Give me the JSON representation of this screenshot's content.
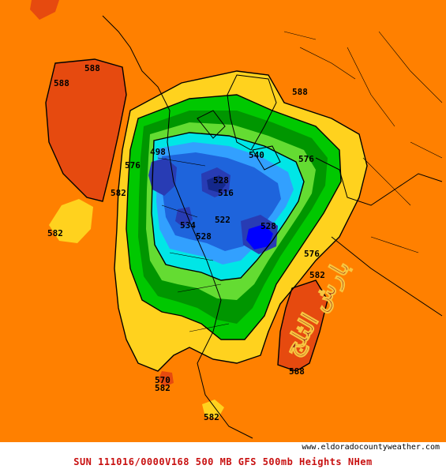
{
  "map": {
    "field": "500mb Heights",
    "palette": {
      "ocean_background": "#ff8000",
      "ridge_high": "#e64a0f",
      "outer_ring": "#ffd21e",
      "ring_green_light": "#00c800",
      "ring_green_dark": "#009600",
      "ring_lime": "#64dc32",
      "ring_cyan": "#00e6e6",
      "ring_sky": "#32a0ff",
      "ring_blue": "#1e64dc",
      "core_navy": "#283cb4",
      "core_dark": "#14288c",
      "core_deep": "#0000ff",
      "caption_red": "#c81010"
    },
    "contour_labels": [
      "588",
      "588",
      "588",
      "582",
      "582",
      "582",
      "582",
      "576",
      "576",
      "576",
      "570",
      "540",
      "534",
      "528",
      "528",
      "528",
      "522",
      "516",
      "498",
      "582",
      "588"
    ],
    "watermark": "بارش الثلج"
  },
  "footer": {
    "credit": "www.eldoradocountyweather.com",
    "caption": "SUN 111016/0000V168   500 MB GFS 500mb Heights NHem"
  }
}
